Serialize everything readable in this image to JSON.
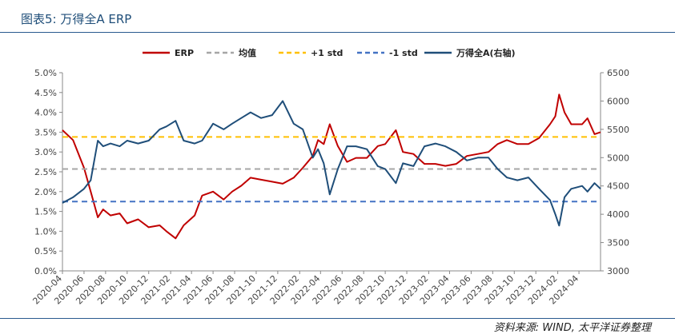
{
  "header": {
    "title": "图表5: 万得全A ERP"
  },
  "footer": {
    "source": "资料来源: WIND, 太平洋证券整理"
  },
  "colors": {
    "erp": "#c00000",
    "avg": "#a6a6a6",
    "plus": "#ffc000",
    "minus": "#4472c4",
    "index": "#1f4e79"
  },
  "chart_data": {
    "type": "line",
    "title": "",
    "legend_position": "top",
    "x_ticks": [
      "2020-04",
      "2020-06",
      "2020-08",
      "2020-10",
      "2020-12",
      "2021-02",
      "2021-04",
      "2021-06",
      "2021-08",
      "2021-10",
      "2021-12",
      "2022-02",
      "2022-04",
      "2022-06",
      "2022-08",
      "2022-10",
      "2022-12",
      "2023-02",
      "2023-04",
      "2023-06",
      "2023-08",
      "2023-10",
      "2023-12",
      "2024-02",
      "2024-04"
    ],
    "x_range": [
      "2020-04",
      "2024-06"
    ],
    "y_left": {
      "ticks": [
        "0.0%",
        "0.5%",
        "1.0%",
        "1.5%",
        "2.0%",
        "2.5%",
        "3.0%",
        "3.5%",
        "4.0%",
        "4.5%",
        "5.0%"
      ],
      "range": [
        0,
        5.0
      ],
      "unit": "%"
    },
    "y_right": {
      "ticks": [
        "3000",
        "3500",
        "4000",
        "4500",
        "5000",
        "5500",
        "6000",
        "6500"
      ],
      "range": [
        3000,
        6500
      ]
    },
    "series": [
      {
        "name": "ERP",
        "axis": "left",
        "style": "solid",
        "points": [
          [
            "2020-04-01",
            3.55
          ],
          [
            "2020-05-01",
            3.3
          ],
          [
            "2020-06-01",
            2.6
          ],
          [
            "2020-06-20",
            2.0
          ],
          [
            "2020-07-10",
            1.35
          ],
          [
            "2020-07-25",
            1.55
          ],
          [
            "2020-08-15",
            1.4
          ],
          [
            "2020-09-10",
            1.45
          ],
          [
            "2020-10-01",
            1.2
          ],
          [
            "2020-11-01",
            1.3
          ],
          [
            "2020-12-01",
            1.1
          ],
          [
            "2021-01-01",
            1.15
          ],
          [
            "2021-01-20",
            1.0
          ],
          [
            "2021-02-15",
            0.82
          ],
          [
            "2021-03-10",
            1.15
          ],
          [
            "2021-04-10",
            1.4
          ],
          [
            "2021-05-01",
            1.9
          ],
          [
            "2021-06-01",
            2.0
          ],
          [
            "2021-07-01",
            1.8
          ],
          [
            "2021-07-25",
            2.0
          ],
          [
            "2021-08-20",
            2.15
          ],
          [
            "2021-09-15",
            2.35
          ],
          [
            "2021-10-15",
            2.3
          ],
          [
            "2021-11-15",
            2.25
          ],
          [
            "2021-12-15",
            2.2
          ],
          [
            "2022-01-15",
            2.35
          ],
          [
            "2022-02-10",
            2.6
          ],
          [
            "2022-03-10",
            2.9
          ],
          [
            "2022-03-25",
            3.3
          ],
          [
            "2022-04-10",
            3.2
          ],
          [
            "2022-04-27",
            3.7
          ],
          [
            "2022-05-20",
            3.15
          ],
          [
            "2022-06-15",
            2.75
          ],
          [
            "2022-07-10",
            2.85
          ],
          [
            "2022-08-10",
            2.85
          ],
          [
            "2022-09-10",
            3.15
          ],
          [
            "2022-10-01",
            3.2
          ],
          [
            "2022-10-31",
            3.55
          ],
          [
            "2022-11-20",
            3.0
          ],
          [
            "2022-12-20",
            2.95
          ],
          [
            "2023-01-20",
            2.7
          ],
          [
            "2023-02-20",
            2.7
          ],
          [
            "2023-03-20",
            2.65
          ],
          [
            "2023-04-20",
            2.7
          ],
          [
            "2023-05-20",
            2.9
          ],
          [
            "2023-06-20",
            2.95
          ],
          [
            "2023-07-20",
            3.0
          ],
          [
            "2023-08-15",
            3.2
          ],
          [
            "2023-09-10",
            3.3
          ],
          [
            "2023-10-10",
            3.2
          ],
          [
            "2023-11-10",
            3.2
          ],
          [
            "2023-12-10",
            3.35
          ],
          [
            "2024-01-10",
            3.7
          ],
          [
            "2024-01-25",
            3.9
          ],
          [
            "2024-02-05",
            4.45
          ],
          [
            "2024-02-20",
            4.0
          ],
          [
            "2024-03-10",
            3.7
          ],
          [
            "2024-04-10",
            3.7
          ],
          [
            "2024-04-25",
            3.85
          ],
          [
            "2024-05-15",
            3.45
          ],
          [
            "2024-06-01",
            3.5
          ]
        ]
      },
      {
        "name": "均值",
        "axis": "left",
        "style": "dashed",
        "value": 2.57
      },
      {
        "name": "+1 std",
        "axis": "left",
        "style": "dashed",
        "value": 3.38
      },
      {
        "name": "-1 std",
        "axis": "left",
        "style": "dashed",
        "value": 1.75
      },
      {
        "name": "万得全A(右轴)",
        "axis": "right",
        "style": "solid",
        "points": [
          [
            "2020-04-01",
            4200
          ],
          [
            "2020-05-01",
            4300
          ],
          [
            "2020-06-01",
            4450
          ],
          [
            "2020-06-20",
            4600
          ],
          [
            "2020-07-10",
            5300
          ],
          [
            "2020-07-25",
            5200
          ],
          [
            "2020-08-15",
            5250
          ],
          [
            "2020-09-10",
            5200
          ],
          [
            "2020-10-01",
            5300
          ],
          [
            "2020-11-01",
            5250
          ],
          [
            "2020-12-01",
            5300
          ],
          [
            "2021-01-01",
            5500
          ],
          [
            "2021-01-20",
            5550
          ],
          [
            "2021-02-15",
            5650
          ],
          [
            "2021-03-10",
            5300
          ],
          [
            "2021-04-10",
            5250
          ],
          [
            "2021-05-01",
            5300
          ],
          [
            "2021-06-01",
            5600
          ],
          [
            "2021-07-01",
            5500
          ],
          [
            "2021-07-25",
            5600
          ],
          [
            "2021-08-20",
            5700
          ],
          [
            "2021-09-15",
            5800
          ],
          [
            "2021-10-15",
            5700
          ],
          [
            "2021-11-15",
            5750
          ],
          [
            "2021-12-15",
            6000
          ],
          [
            "2022-01-15",
            5600
          ],
          [
            "2022-02-10",
            5500
          ],
          [
            "2022-03-10",
            5000
          ],
          [
            "2022-03-25",
            5150
          ],
          [
            "2022-04-10",
            4900
          ],
          [
            "2022-04-27",
            4350
          ],
          [
            "2022-05-20",
            4800
          ],
          [
            "2022-06-15",
            5200
          ],
          [
            "2022-07-10",
            5200
          ],
          [
            "2022-08-10",
            5150
          ],
          [
            "2022-09-10",
            4850
          ],
          [
            "2022-10-01",
            4800
          ],
          [
            "2022-10-31",
            4550
          ],
          [
            "2022-11-20",
            4900
          ],
          [
            "2022-12-20",
            4850
          ],
          [
            "2023-01-20",
            5200
          ],
          [
            "2023-02-20",
            5250
          ],
          [
            "2023-03-20",
            5200
          ],
          [
            "2023-04-20",
            5100
          ],
          [
            "2023-05-20",
            4950
          ],
          [
            "2023-06-20",
            5000
          ],
          [
            "2023-07-20",
            5000
          ],
          [
            "2023-08-15",
            4800
          ],
          [
            "2023-09-10",
            4650
          ],
          [
            "2023-10-10",
            4600
          ],
          [
            "2023-11-10",
            4650
          ],
          [
            "2023-12-10",
            4450
          ],
          [
            "2024-01-10",
            4250
          ],
          [
            "2024-01-25",
            4000
          ],
          [
            "2024-02-05",
            3800
          ],
          [
            "2024-02-20",
            4300
          ],
          [
            "2024-03-10",
            4450
          ],
          [
            "2024-04-10",
            4500
          ],
          [
            "2024-04-25",
            4400
          ],
          [
            "2024-05-15",
            4550
          ],
          [
            "2024-06-01",
            4450
          ]
        ]
      }
    ]
  }
}
